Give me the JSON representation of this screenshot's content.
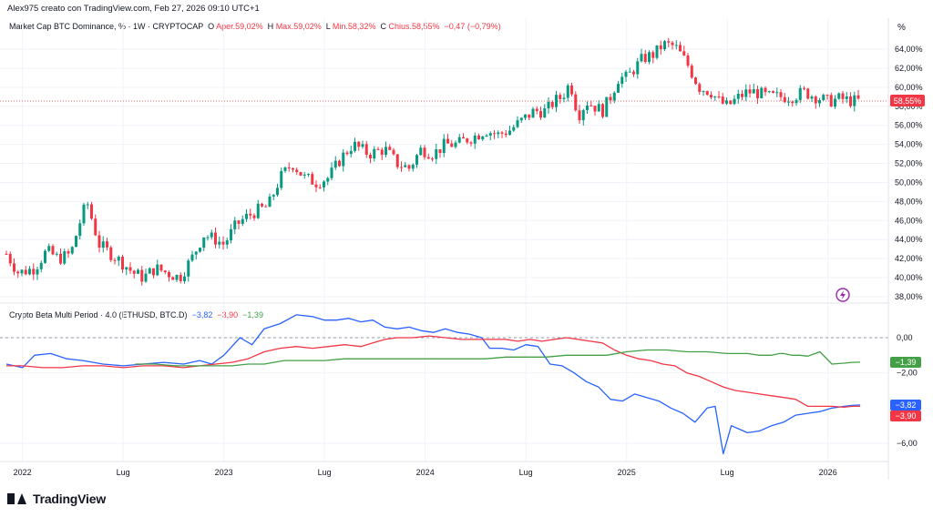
{
  "watermark": {
    "text": "Alex975 creato con TradingView.com, Feb 27, 2026 09:10 UTC+1"
  },
  "brand": {
    "name": "TradingView"
  },
  "main_legend": {
    "symbol": "Market Cap BTC Dominance, % · 1W · CRYPTOCAP",
    "open_label": "O",
    "open": "Aper.59,02%",
    "high_label": "H",
    "high": "Max.59,02%",
    "low_label": "L",
    "low": "Min.58,32%",
    "close_label": "C",
    "close": "Chius.58,55%",
    "change": "−0,47 (−0,79%)"
  },
  "indicator_legend": {
    "name": "Crypto Beta Multi Period · 4.0 (ETHUSD, BTC.D)",
    "v1": "−3,82",
    "v2": "−3,90",
    "v3": "−1,39"
  },
  "axes": {
    "percent_header": "%",
    "main_ticks": [
      "64,00%",
      "62,00%",
      "60,00%",
      "58,00%",
      "56,00%",
      "54,00%",
      "52,00%",
      "50,00%",
      "48,00%",
      "46,00%",
      "44,00%",
      "42,00%",
      "40,00%",
      "38,00%"
    ],
    "indicator_ticks": [
      "0,00",
      "−2,00",
      "−6,00"
    ],
    "x_labels": [
      "2022",
      "Lug",
      "2023",
      "Lug",
      "2024",
      "Lug",
      "2025",
      "Lug",
      "2026"
    ]
  },
  "price_label": "58,55%",
  "indicator_labels": {
    "green": "−1,39",
    "blue": "−3,82",
    "red": "−3,90"
  },
  "colors": {
    "up": "#089981",
    "down": "#f23645",
    "blue": "#2962ff",
    "red": "#f23645",
    "green": "#43a047",
    "grid": "#f0f3fa",
    "axis_text": "#131722"
  },
  "chart_data": [
    {
      "type": "candlestick",
      "title": "Market Cap BTC Dominance, % · 1W · CRYPTOCAP",
      "ylabel": "%",
      "ylim": [
        37.0,
        65.5
      ],
      "x_ticks": [
        "2022",
        "Lug",
        "2023",
        "Lug",
        "2024",
        "Lug",
        "2025",
        "Lug",
        "2026"
      ],
      "last_close": 58.55,
      "close_series": {
        "x_years": [
          2021.92,
          2021.98,
          2022.06,
          2022.12,
          2022.18,
          2022.24,
          2022.28,
          2022.32,
          2022.38,
          2022.44,
          2022.5,
          2022.55,
          2022.6,
          2022.66,
          2022.72,
          2022.78,
          2022.84,
          2022.9,
          2022.96,
          2023.0,
          2023.06,
          2023.1,
          2023.16,
          2023.22,
          2023.28,
          2023.34,
          2023.4,
          2023.46,
          2023.52,
          2023.58,
          2023.64,
          2023.72,
          2023.8,
          2023.86,
          2023.92,
          2023.98,
          2024.04,
          2024.1,
          2024.16,
          2024.2,
          2024.24,
          2024.3,
          2024.36,
          2024.42,
          2024.48,
          2024.54,
          2024.6,
          2024.64,
          2024.68,
          2024.72,
          2024.76,
          2024.8,
          2024.84,
          2024.88,
          2024.92,
          2024.96,
          2025.0,
          2025.04,
          2025.08,
          2025.14,
          2025.18,
          2025.24,
          2025.3,
          2025.36,
          2025.42,
          2025.46,
          2025.5,
          2025.56,
          2025.6,
          2025.64,
          2025.7,
          2025.76,
          2025.82,
          2025.88,
          2025.94,
          2026.0,
          2026.06,
          2026.12,
          2026.16
        ],
        "values": [
          42.5,
          40.5,
          41.0,
          42.8,
          42.0,
          42.5,
          45.5,
          48.0,
          43.5,
          42.5,
          41.5,
          40.5,
          40.0,
          41.0,
          40.5,
          40.0,
          42.0,
          44.5,
          44.0,
          43.5,
          45.5,
          46.2,
          47.0,
          47.5,
          50.5,
          52.0,
          50.5,
          50.0,
          50.5,
          52.5,
          54.0,
          53.0,
          53.5,
          52.0,
          51.5,
          53.5,
          53.0,
          54.0,
          54.0,
          54.5,
          54.8,
          55.5,
          55.0,
          55.5,
          56.5,
          57.5,
          57.5,
          58.5,
          59.0,
          60.5,
          57.0,
          58.5,
          58.0,
          57.5,
          59.0,
          61.0,
          61.0,
          62.0,
          63.0,
          63.5,
          64.5,
          64.3,
          62.5,
          60.0,
          59.5,
          58.5,
          58.0,
          59.0,
          59.5,
          59.5,
          59.0,
          59.0,
          59.0,
          59.5,
          59.0,
          58.5,
          58.8,
          58.55,
          58.55
        ]
      }
    },
    {
      "type": "line",
      "title": "Crypto Beta Multi Period · 4.0 (ETHUSD, BTC.D)",
      "ylim": [
        -7.0,
        1.5
      ],
      "x_ticks": [
        "2022",
        "Lug",
        "2023",
        "Lug",
        "2024",
        "Lug",
        "2025",
        "Lug",
        "2026"
      ],
      "series": [
        {
          "color": "blue",
          "x_years": [
            2021.92,
            2022.0,
            2022.06,
            2022.14,
            2022.22,
            2022.3,
            2022.4,
            2022.5,
            2022.6,
            2022.7,
            2022.8,
            2022.88,
            2022.94,
            2023.0,
            2023.08,
            2023.14,
            2023.2,
            2023.28,
            2023.36,
            2023.44,
            2023.5,
            2023.56,
            2023.62,
            2023.68,
            2023.74,
            2023.8,
            2023.86,
            2023.92,
            2023.98,
            2024.04,
            2024.1,
            2024.16,
            2024.22,
            2024.28,
            2024.32,
            2024.38,
            2024.44,
            2024.5,
            2024.56,
            2024.62,
            2024.68,
            2024.74,
            2024.8,
            2024.86,
            2024.92,
            2024.98,
            2025.04,
            2025.1,
            2025.16,
            2025.22,
            2025.28,
            2025.34,
            2025.4,
            2025.44,
            2025.48,
            2025.52,
            2025.56,
            2025.6,
            2025.66,
            2025.72,
            2025.78,
            2025.84,
            2025.9,
            2025.96,
            2026.02,
            2026.08,
            2026.12,
            2026.16
          ],
          "values": [
            -1.5,
            -1.7,
            -1.0,
            -0.9,
            -1.2,
            -1.3,
            -1.5,
            -1.6,
            -1.5,
            -1.4,
            -1.5,
            -1.3,
            -1.5,
            -1.0,
            0.0,
            -0.4,
            0.5,
            0.8,
            1.3,
            1.2,
            1.0,
            1.0,
            1.1,
            0.9,
            1.0,
            0.6,
            0.5,
            0.6,
            0.4,
            0.3,
            0.5,
            0.3,
            0.2,
            0.0,
            -0.6,
            -0.6,
            -0.7,
            -0.4,
            -0.5,
            -1.5,
            -1.6,
            -2.0,
            -2.5,
            -2.8,
            -3.5,
            -3.6,
            -3.2,
            -3.4,
            -3.6,
            -4.0,
            -4.3,
            -4.8,
            -4.0,
            -3.9,
            -6.6,
            -5.0,
            -5.2,
            -5.4,
            -5.3,
            -5.0,
            -4.8,
            -4.4,
            -4.3,
            -4.2,
            -4.0,
            -3.9,
            -3.85,
            -3.82
          ]
        },
        {
          "color": "red",
          "x_years": [
            2021.92,
            2022.0,
            2022.1,
            2022.2,
            2022.3,
            2022.4,
            2022.5,
            2022.6,
            2022.7,
            2022.8,
            2022.88,
            2022.96,
            2023.04,
            2023.12,
            2023.2,
            2023.28,
            2023.36,
            2023.44,
            2023.52,
            2023.6,
            2023.68,
            2023.74,
            2023.8,
            2023.86,
            2023.94,
            2024.02,
            2024.1,
            2024.18,
            2024.26,
            2024.34,
            2024.4,
            2024.46,
            2024.52,
            2024.58,
            2024.64,
            2024.7,
            2024.76,
            2024.82,
            2024.88,
            2024.94,
            2025.0,
            2025.06,
            2025.12,
            2025.18,
            2025.24,
            2025.3,
            2025.36,
            2025.42,
            2025.48,
            2025.54,
            2025.6,
            2025.66,
            2025.72,
            2025.78,
            2025.84,
            2025.9,
            2025.96,
            2026.02,
            2026.08,
            2026.12,
            2026.16
          ],
          "values": [
            -1.6,
            -1.6,
            -1.7,
            -1.7,
            -1.6,
            -1.6,
            -1.7,
            -1.6,
            -1.6,
            -1.7,
            -1.6,
            -1.5,
            -1.4,
            -1.2,
            -0.8,
            -0.6,
            -0.5,
            -0.6,
            -0.5,
            -0.4,
            -0.5,
            -0.3,
            -0.1,
            0.0,
            0.0,
            0.1,
            0.0,
            -0.1,
            -0.1,
            -0.1,
            -0.1,
            -0.2,
            -0.1,
            -0.2,
            -0.1,
            0.0,
            -0.1,
            -0.2,
            -0.3,
            -0.7,
            -1.0,
            -1.2,
            -1.3,
            -1.5,
            -1.6,
            -2.0,
            -2.2,
            -2.5,
            -2.8,
            -3.0,
            -3.1,
            -3.2,
            -3.3,
            -3.4,
            -3.5,
            -3.9,
            -3.9,
            -3.9,
            -3.95,
            -3.9,
            -3.9
          ]
        },
        {
          "color": "green",
          "x_years": [
            2022.56,
            2022.66,
            2022.76,
            2022.86,
            2022.96,
            2023.04,
            2023.12,
            2023.2,
            2023.3,
            2023.4,
            2023.5,
            2023.6,
            2023.7,
            2023.8,
            2023.9,
            2024.0,
            2024.1,
            2024.2,
            2024.3,
            2024.4,
            2024.5,
            2024.6,
            2024.7,
            2024.8,
            2024.9,
            2025.0,
            2025.1,
            2025.2,
            2025.3,
            2025.4,
            2025.5,
            2025.6,
            2025.66,
            2025.72,
            2025.76,
            2025.78,
            2025.82,
            2025.86,
            2025.9,
            2025.96,
            2026.02,
            2026.08,
            2026.12,
            2026.16
          ],
          "values": [
            -1.5,
            -1.5,
            -1.6,
            -1.6,
            -1.6,
            -1.6,
            -1.5,
            -1.5,
            -1.3,
            -1.3,
            -1.3,
            -1.2,
            -1.2,
            -1.2,
            -1.2,
            -1.2,
            -1.2,
            -1.2,
            -1.2,
            -1.1,
            -1.1,
            -1.1,
            -1.0,
            -1.0,
            -1.0,
            -0.8,
            -0.7,
            -0.7,
            -0.8,
            -0.8,
            -0.9,
            -0.9,
            -1.0,
            -1.0,
            -0.9,
            -0.9,
            -1.0,
            -1.0,
            -1.05,
            -0.8,
            -1.5,
            -1.45,
            -1.4,
            -1.39
          ]
        }
      ]
    }
  ]
}
